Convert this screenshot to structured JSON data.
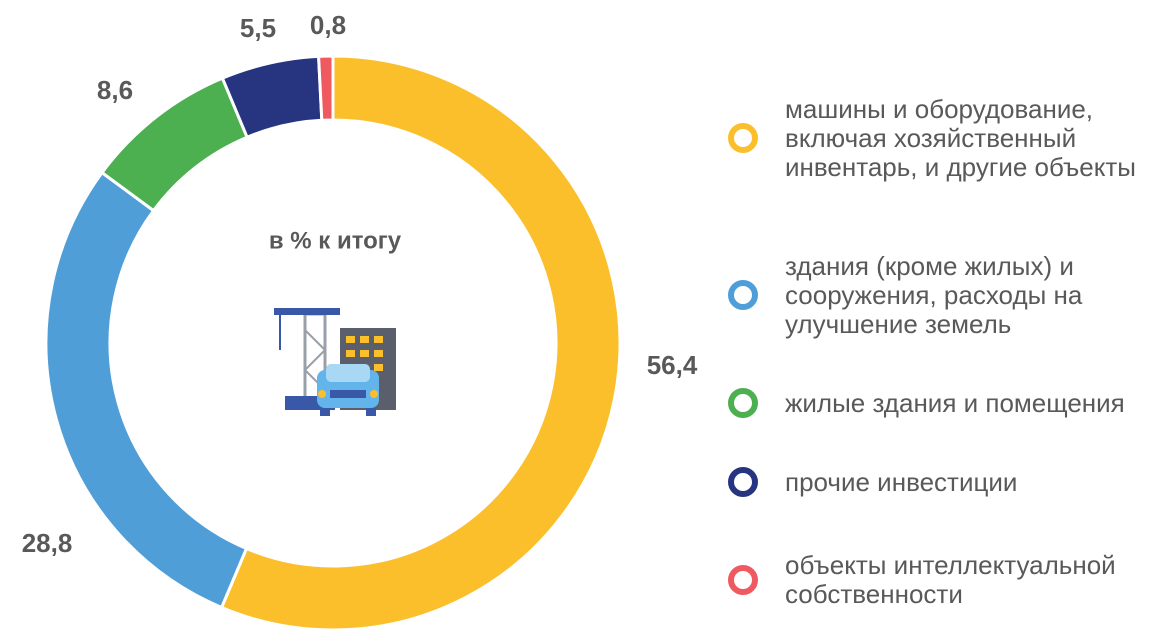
{
  "chart_data": {
    "type": "pie",
    "annotation": "в % к итогу",
    "categories": [
      "машины и оборудование, включая хозяйственный инвентарь, и другие объекты",
      "здания (кроме жилых) и сооружения, расходы на улучшение земель",
      "жилые здания и помещения",
      "прочие инвестиции",
      "объекты интеллектуальной собственности"
    ],
    "values": [
      56.4,
      28.8,
      8.6,
      5.5,
      0.8
    ],
    "value_labels": [
      "56,4",
      "28,8",
      "8,6",
      "5,5",
      "0,8"
    ],
    "colors": [
      "#fbbf2b",
      "#4f9ed8",
      "#4caf50",
      "#273580",
      "#ee5a5f"
    ],
    "legend": "right"
  }
}
